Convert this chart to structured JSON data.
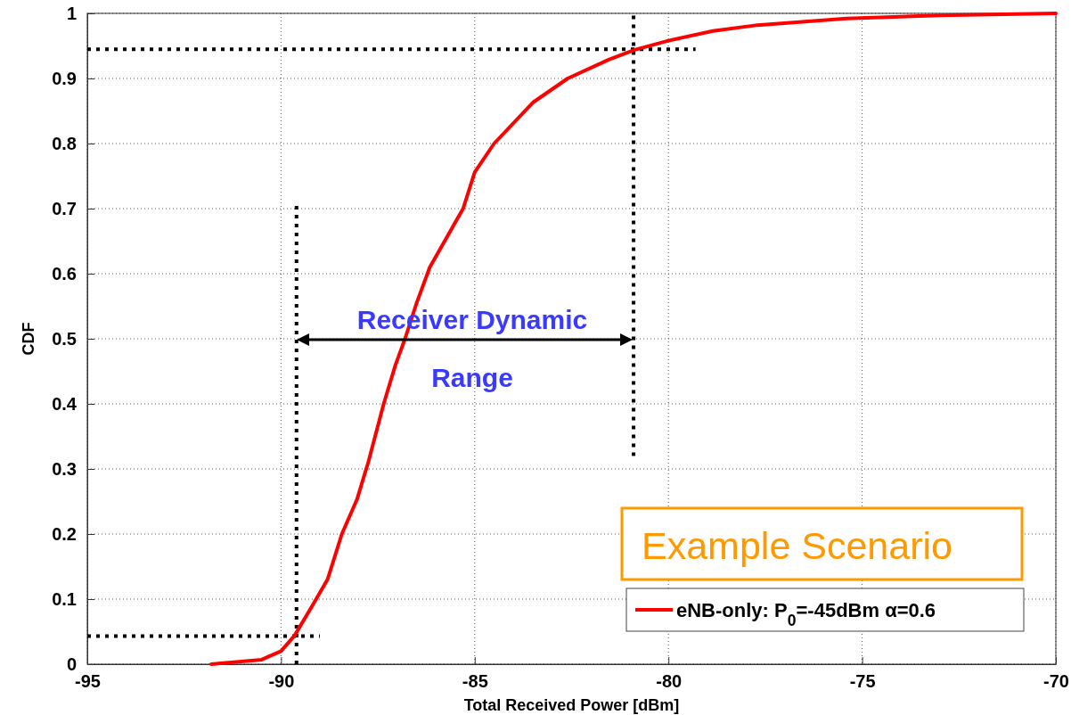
{
  "chart_data": {
    "type": "line",
    "xlabel": "Total Received Power [dBm]",
    "ylabel": "CDF",
    "xlim": [
      -95,
      -70
    ],
    "xticks": [
      -95,
      -90,
      -85,
      -80,
      -75,
      -70
    ],
    "ylim": [
      0,
      1
    ],
    "yticks": [
      0,
      0.1,
      0.2,
      0.3,
      0.4,
      0.5,
      0.6,
      0.7,
      0.8,
      0.9,
      1
    ],
    "grid": true,
    "legend": "bottom right",
    "marker": "none",
    "series": [
      {
        "name": "eNB-only: P$_{0}$=-45dBm α=0.6",
        "color": "#ff0000",
        "line_style": "solid",
        "x": [
          -91.8,
          -90.5,
          -90,
          -89.65,
          -89.2,
          -88.8,
          -88.43,
          -88.04,
          -87.74,
          -87.35,
          -87.05,
          -86.8,
          -86.5,
          -86.16,
          -85.3,
          -85,
          -84.5,
          -83.5,
          -82.6,
          -81.54,
          -80.87,
          -80,
          -78.85,
          -77.7,
          -75.4,
          -73,
          -70
        ],
        "values": [
          0,
          0.007,
          0.02,
          0.044,
          0.089,
          0.13,
          0.2,
          0.253,
          0.312,
          0.4,
          0.459,
          0.5,
          0.555,
          0.61,
          0.7,
          0.756,
          0.8,
          0.863,
          0.9,
          0.929,
          0.944,
          0.958,
          0.973,
          0.982,
          0.992,
          0.997,
          1
        ]
      },
      {
        "type": "line",
        "color": "#000000",
        "line_style": "dotted",
        "x": [
          -95,
          -79.3
        ],
        "values": [
          0.945,
          0.945
        ]
      },
      {
        "type": "line",
        "color": "#000000",
        "line_style": "dotted",
        "x": [
          -80.9,
          -80.9
        ],
        "values": [
          0.32,
          1
        ]
      },
      {
        "type": "line",
        "color": "#000000",
        "line_style": "dotted",
        "x": [
          -89.6,
          -89.6
        ],
        "values": [
          0,
          0.71
        ]
      },
      {
        "type": "line",
        "color": "#000000",
        "line_style": "dotted",
        "x": [
          -95,
          -89
        ],
        "values": [
          0.043,
          0.043
        ]
      }
    ],
    "annotations": [
      "Receiver Dynamic\nRange",
      "Example Scenario"
    ]
  }
}
